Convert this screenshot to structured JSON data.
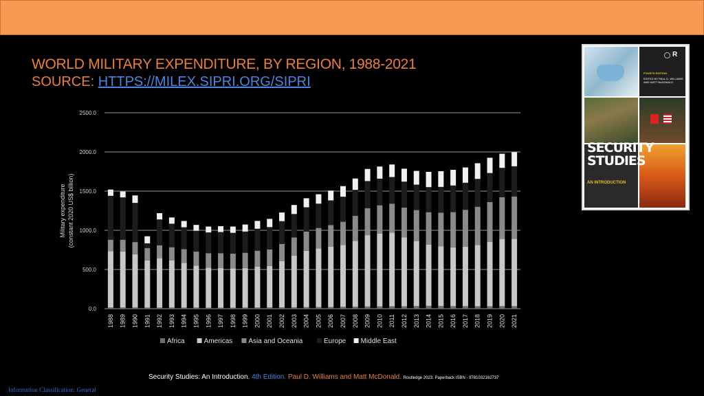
{
  "header": {
    "title": "WORLD MILITARY EXPENDITURE, BY REGION, 1988-2021",
    "source_label": "SOURCE: ",
    "source_link": "HTTPS://MILEX.SIPRI.ORG/SIPRI"
  },
  "book": {
    "edition": "FOURTH EDITION",
    "editors": "EDITED BY PAUL D. WILLIAMS AND MATT McDONALD",
    "title": "SECURITY STUDIES",
    "subtitle": "AN INTRODUCTION",
    "publisher_logo": "R"
  },
  "footer": {
    "title": "Security Studies: An Introduction.",
    "edition": "4th Edition.",
    "authors": "Paul D. Williams and Matt McDonald.",
    "publisher": "Routledge 2023. Paperback ISBN - 9781032162737"
  },
  "classification": "Information Classification: General",
  "colors": {
    "banner": "#f79a52",
    "title": "#e8803a",
    "link": "#4a86e0",
    "africa": "#6e6e6e",
    "americas": "#c8c8c8",
    "asia_oceania": "#8a8a8a",
    "europe": "#1c1c1c",
    "middle_east": "#f0f0f0"
  },
  "chart_data": {
    "type": "bar",
    "stacked": true,
    "ylabel_line1": "Military expenditure",
    "ylabel_line2": "(constant 2020 US$ billion)",
    "ylim": [
      0,
      2500
    ],
    "yticks": [
      "0.0",
      "500.0",
      "1000.0",
      "1500.0",
      "2000.0",
      "2500.0"
    ],
    "grid": true,
    "legend_position": "bottom",
    "categories": [
      "1988",
      "1989",
      "1990",
      "1991",
      "1992",
      "1993",
      "1994",
      "1995",
      "1996",
      "1997",
      "1998",
      "1999",
      "2000",
      "2001",
      "2002",
      "2003",
      "2004",
      "2005",
      "2006",
      "2007",
      "2008",
      "2009",
      "2010",
      "2011",
      "2012",
      "2013",
      "2014",
      "2015",
      "2016",
      "2017",
      "2018",
      "2019",
      "2020",
      "2021"
    ],
    "series": [
      {
        "name": "Africa",
        "color": "#6e6e6e",
        "values": [
          15,
          15,
          15,
          14,
          14,
          14,
          14,
          14,
          13,
          13,
          13,
          14,
          15,
          16,
          17,
          18,
          19,
          20,
          22,
          24,
          26,
          28,
          29,
          30,
          31,
          33,
          36,
          34,
          32,
          32,
          31,
          31,
          32,
          32
        ]
      },
      {
        "name": "Americas",
        "color": "#c8c8c8",
        "values": [
          720,
          715,
          680,
          600,
          630,
          600,
          570,
          535,
          510,
          505,
          500,
          505,
          520,
          530,
          590,
          660,
          720,
          750,
          770,
          790,
          840,
          910,
          930,
          940,
          880,
          830,
          780,
          760,
          750,
          760,
          780,
          820,
          860,
          860
        ]
      },
      {
        "name": "Asia and Oceania",
        "color": "#8a8a8a",
        "values": [
          145,
          150,
          155,
          160,
          165,
          170,
          175,
          180,
          185,
          190,
          190,
          195,
          205,
          210,
          220,
          230,
          245,
          260,
          275,
          295,
          320,
          345,
          360,
          370,
          380,
          395,
          415,
          430,
          450,
          470,
          490,
          510,
          530,
          540
        ]
      },
      {
        "name": "Europe",
        "color": "#1c1c1c",
        "values": [
          560,
          540,
          500,
          60,
          330,
          300,
          280,
          265,
          265,
          270,
          265,
          270,
          280,
          285,
          290,
          300,
          310,
          310,
          315,
          320,
          330,
          345,
          340,
          340,
          330,
          325,
          320,
          330,
          340,
          345,
          355,
          370,
          375,
          385
        ]
      },
      {
        "name": "Middle East",
        "color": "#f0f0f0",
        "values": [
          80,
          75,
          95,
          90,
          80,
          80,
          80,
          75,
          75,
          75,
          80,
          90,
          100,
          105,
          110,
          115,
          115,
          120,
          125,
          135,
          145,
          155,
          155,
          160,
          165,
          175,
          195,
          200,
          200,
          195,
          200,
          195,
          180,
          180
        ]
      }
    ]
  }
}
